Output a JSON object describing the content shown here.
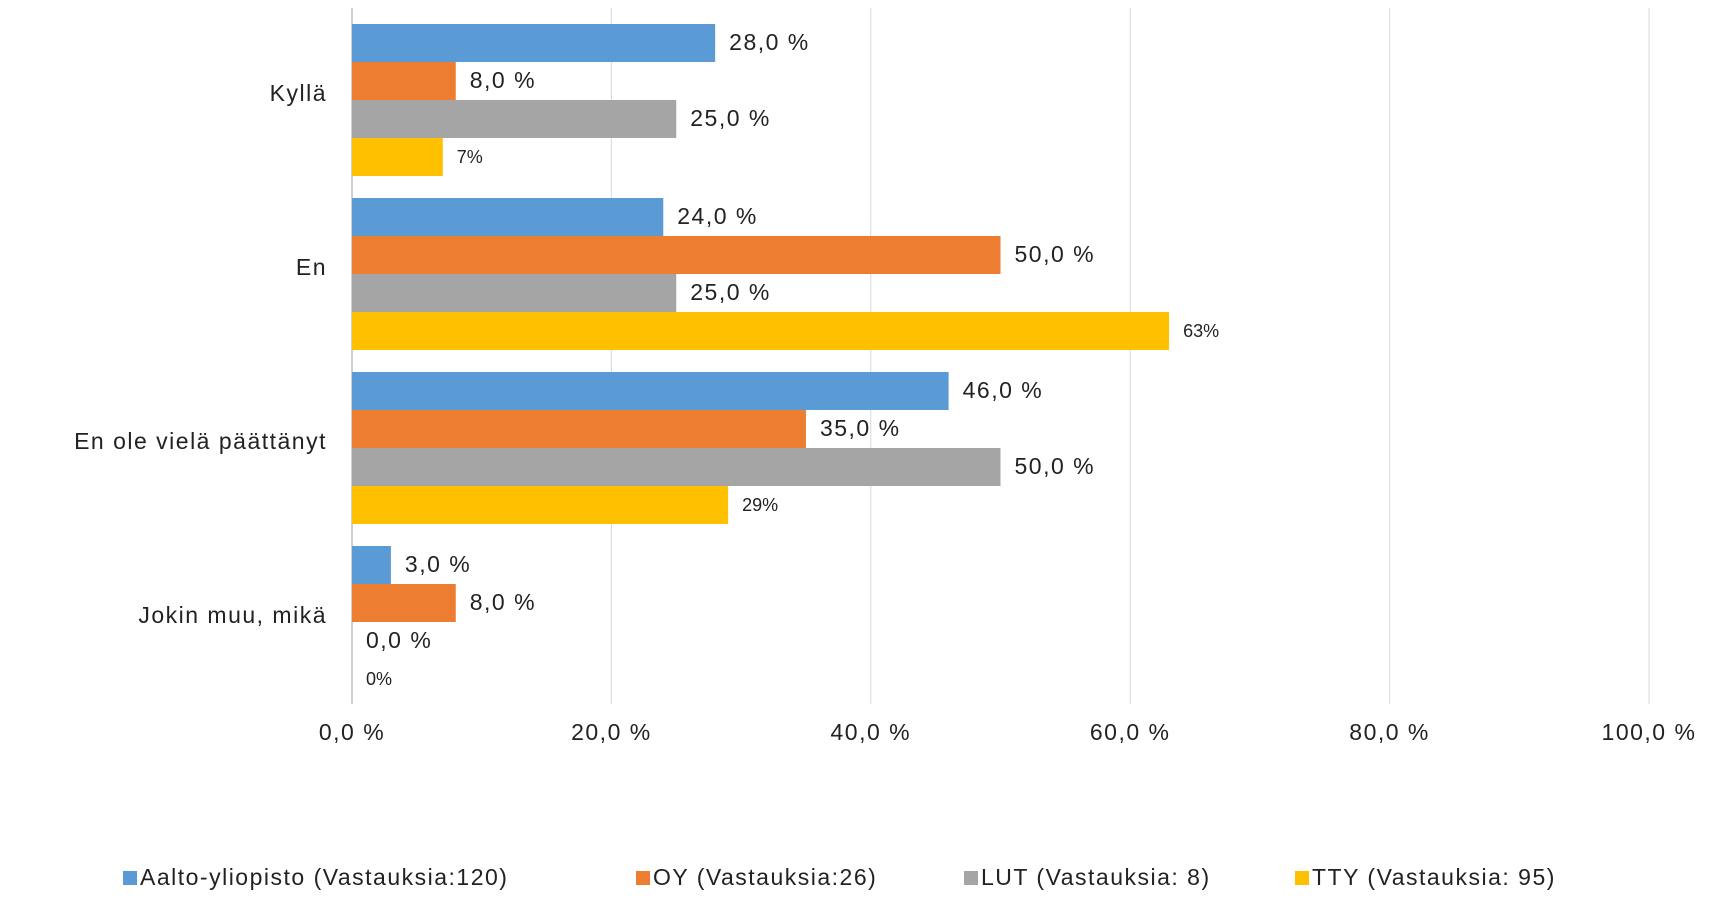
{
  "chart_data": {
    "type": "bar",
    "orientation": "horizontal",
    "categories": [
      "Kyllä",
      "En",
      "En ole vielä päättänyt",
      "Jokin muu, mikä"
    ],
    "series": [
      {
        "name": "Aalto-yliopisto (Vastauksia:120)",
        "color": "#5b9bd5",
        "values": [
          28,
          24,
          46,
          3
        ],
        "value_labels": [
          "28,0 %",
          "24,0 %",
          "46,0 %",
          "3,0 %"
        ]
      },
      {
        "name": "OY (Vastauksia:26)",
        "color": "#ed7d31",
        "values": [
          8,
          50,
          35,
          8
        ],
        "value_labels": [
          "8,0 %",
          "50,0 %",
          "35,0 %",
          "8,0 %"
        ]
      },
      {
        "name": "LUT (Vastauksia: 8)",
        "color": "#a5a5a5",
        "values": [
          25,
          25,
          50,
          0
        ],
        "value_labels": [
          "25,0 %",
          "25,0 %",
          "50,0 %",
          "0,0 %"
        ]
      },
      {
        "name": "TTY (Vastauksia: 95)",
        "color": "#ffc000",
        "values": [
          7,
          63,
          29,
          0
        ],
        "value_labels": [
          "7%",
          "63%",
          "29%",
          "0%"
        ]
      }
    ],
    "xlim": [
      0,
      100
    ],
    "xticks": [
      {
        "value": 0,
        "label": "0,0 %"
      },
      {
        "value": 20,
        "label": "20,0 %"
      },
      {
        "value": 40,
        "label": "40,0 %"
      },
      {
        "value": 60,
        "label": "60,0 %"
      },
      {
        "value": 80,
        "label": "80,0 %"
      },
      {
        "value": 100,
        "label": "100,0 %"
      }
    ],
    "grid": true,
    "legend": "bottom"
  }
}
